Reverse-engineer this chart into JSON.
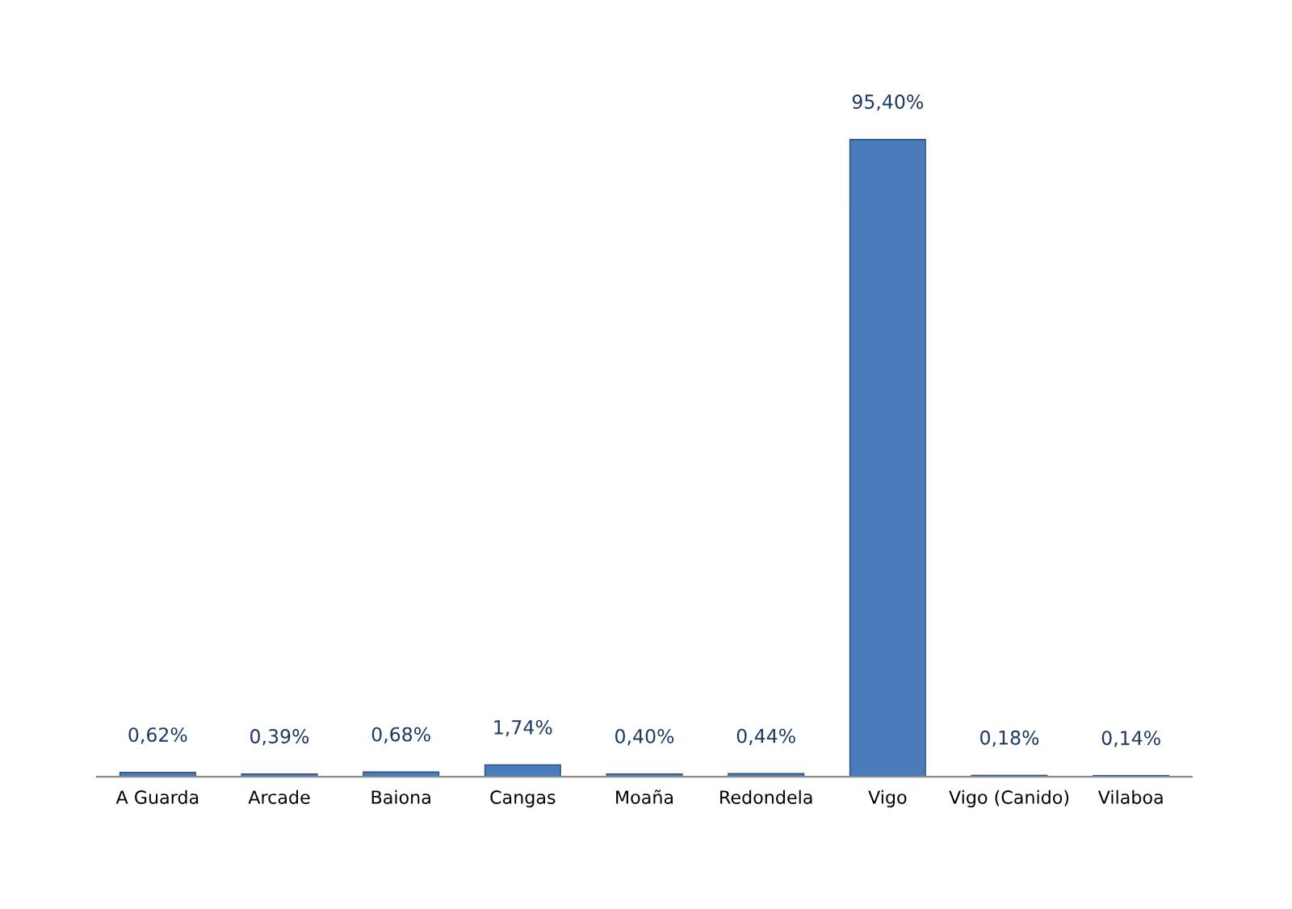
{
  "chart_data": {
    "type": "bar",
    "categories": [
      "A Guarda",
      "Arcade",
      "Baiona",
      "Cangas",
      "Moaña",
      "Redondela",
      "Vigo",
      "Vigo (Canido)",
      "Vilaboa"
    ],
    "values": [
      0.62,
      0.39,
      0.68,
      1.74,
      0.4,
      0.44,
      95.4,
      0.18,
      0.14
    ],
    "value_labels": [
      "0,62%",
      "0,39%",
      "0,68%",
      "1,74%",
      "0,40%",
      "0,44%",
      "95,40%",
      "0,18%",
      "0,14%"
    ],
    "color": "#4a7bba",
    "grid": false,
    "legend": false
  }
}
